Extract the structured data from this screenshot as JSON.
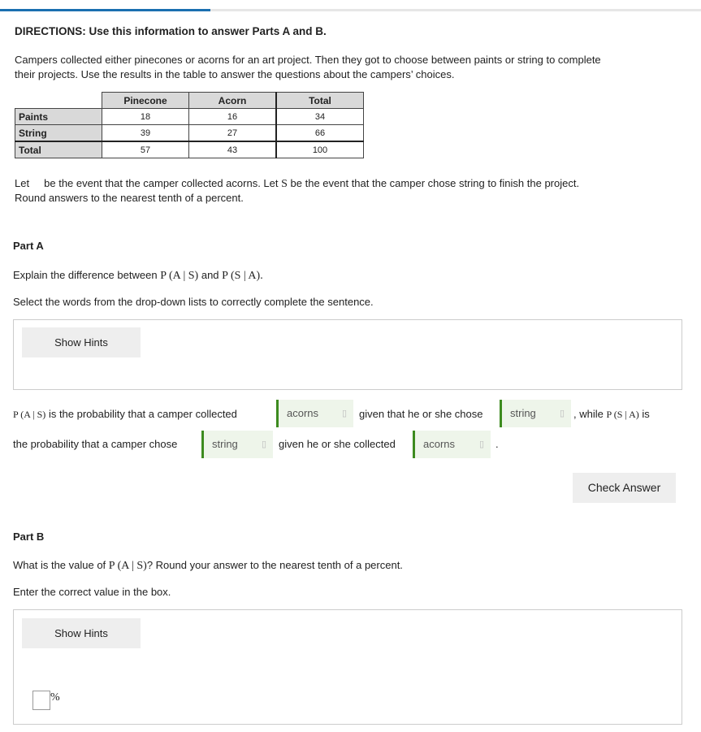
{
  "progress_percent": 30,
  "directions": "DIRECTIONS: Use this information to answer Parts A and B.",
  "intro1": "Campers collected either pinecones or acorns for an art project. Then they got to choose between paints or string to complete",
  "intro2": "their projects. Use the results in the table to answer the questions about the campers’ choices.",
  "table": {
    "headers": [
      "Pinecone",
      "Acorn",
      "Total"
    ],
    "rows": [
      {
        "label": "Paints",
        "values": [
          "18",
          "16",
          "34"
        ]
      },
      {
        "label": "String",
        "values": [
          "39",
          "27",
          "66"
        ]
      },
      {
        "label": "Total",
        "values": [
          "57",
          "43",
          "100"
        ]
      }
    ]
  },
  "let_a": "Let",
  "let_b": "be the event that the camper collected acorns. Let",
  "let_s": "S",
  "let_c": "be the event that the camper chose string to finish the project.",
  "round": "Round answers to the nearest tenth of a percent.",
  "partA": {
    "title": "Part A",
    "explain": "Explain the difference between",
    "pas": "P (A | S)",
    "and": "and",
    "psa": "P (S | A).",
    "select": "Select the words from the drop-down lists to correctly complete the sentence.",
    "hints": "Show Hints",
    "s1": "P (A | S)",
    "s2": "is the probability that a camper collected",
    "dd1": "acorns",
    "s3": "given that he or she chose",
    "dd2": "string",
    "s4": ", while",
    "s5": "P (S | A)",
    "s6": "is",
    "s7": "the probability that a camper chose",
    "dd3": "string",
    "s8": "given he or she collected",
    "dd4": "acorns",
    "s9": ".",
    "check": "Check Answer"
  },
  "partB": {
    "title": "Part B",
    "q1": "What is the value of",
    "pas": "P (A | S)",
    "q2": "? Round your answer to the nearest tenth of a percent.",
    "enter": "Enter the correct value in the box.",
    "hints": "Show Hints",
    "unit": "%"
  }
}
